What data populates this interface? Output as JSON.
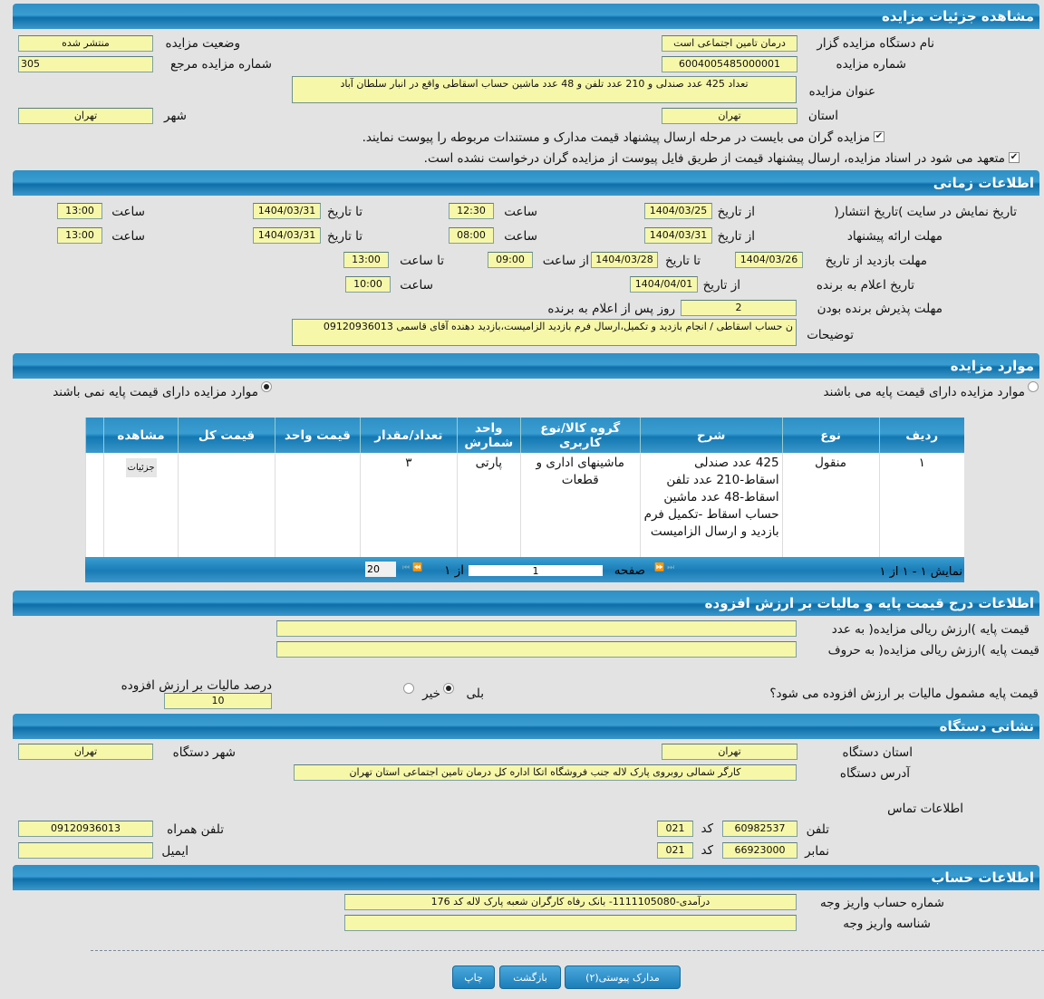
{
  "title": "مشاهده جزئیات مزایده",
  "details": {
    "org_label": "نام دستگاه مزایده گزار",
    "org_value": "درمان تامین اجتماعی است",
    "status_label": "وضعیت مزایده",
    "status_value": "منتشر شده",
    "number_label": "شماره مزایده",
    "number_value": "6004005485000001",
    "ref_label": "شماره مزایده مرجع",
    "ref_value": "305",
    "subject_label": "عنوان مزایده",
    "subject_value": "تعداد 425 عدد صندلی و 210 عدد تلفن و 48 عدد ماشین حساب اسقاطی واقع در انبار سلطان آباد",
    "province_label": "استان",
    "province_value": "تهران",
    "city_label": "شهر",
    "city_value": "تهران",
    "check1": "مزایده گران می بایست در مرحله ارسال پیشنهاد قیمت مدارک و مستندات مربوطه را پیوست نمایند.",
    "check2": "متعهد می شود در اسناد مزایده، ارسال پیشنهاد قیمت از طریق فایل پیوست از مزایده گران درخواست نشده است."
  },
  "timing": {
    "title": "اطلاعات زمانی",
    "publish_label": "تاریخ نمایش در سایت )تاریخ انتشار(",
    "offer_label": "مهلت ارائه پیشنهاد",
    "visit_label": "مهلت بازدید   از تاریخ",
    "announce_label": "تاریخ اعلام به برنده",
    "accept_label": "مهلت پذیرش برنده بودن",
    "from_date": "از تاریخ",
    "to_date": "تا تاریخ",
    "time": "ساعت",
    "from_time": "از ساعت",
    "to_time": "تا ساعت",
    "publish": {
      "from": "1404/03/25",
      "from_time": "12:30",
      "to": "1404/03/31",
      "to_time": "13:00"
    },
    "offer": {
      "from": "1404/03/31",
      "from_time": "08:00",
      "to": "1404/03/31",
      "to_time": "13:00"
    },
    "visit": {
      "from": "1404/03/26",
      "to": "1404/03/28",
      "from_time": "09:00",
      "to_time": "13:00"
    },
    "announce": {
      "from": "1404/04/01",
      "time": "10:00"
    },
    "accept_days": "2",
    "accept_suffix": "روز پس از اعلام به برنده",
    "notes_label": "توضیحات",
    "notes_value": "ن حساب اسقاطی  /  انجام بازدید و تکمیل،ارسال فرم بازدید الزامیست،بازدید دهنده آقای قاسمی 09120936013"
  },
  "items": {
    "title": "موارد مزایده",
    "radio_with_price": "موارد مزایده دارای قیمت پایه می باشند",
    "radio_without_price": "موارد مزایده دارای قیمت پایه نمی باشند",
    "columns": [
      "ردیف",
      "نوع",
      "شرح",
      "گروه کالا/نوع کاربری",
      "واحد شمارش",
      "تعداد/مقدار",
      "قیمت واحد",
      "قیمت کل",
      "مشاهده"
    ],
    "rows": [
      {
        "row": "۱",
        "type": "منقول",
        "desc": "425 عدد صندلی اسقاط-210 عدد تلفن اسقاط-48 عدد ماشین حساب اسقاط   -تکمیل فرم بازدید و ارسال الزامیست",
        "group": "ماشینهای اداری و قطعات",
        "unit": "پارتی",
        "qty": "۳",
        "unit_price": "",
        "total": "",
        "view": "جزئیات"
      }
    ],
    "pager": {
      "summary": "نمایش ۱ - ۱ از ۱",
      "page_label": "صفحه",
      "page": "1",
      "of": "از ۱",
      "page_size": "20"
    }
  },
  "price": {
    "title": "اطلاعات درج قیمت پایه و مالیات بر ارزش افزوده",
    "number_label": "قیمت پایه )ارزش ریالی مزایده( به عدد",
    "number_value": "",
    "words_label": "قیمت پایه )ارزش ریالی مزایده( به حروف",
    "words_value": "",
    "vat_question": "قیمت پایه مشمول مالیات بر ارزش افزوده می شود؟",
    "yes": "بلی",
    "no": "خیر",
    "vat_percent_label": "درصد مالیات بر ارزش افزوده",
    "vat_percent_value": "10"
  },
  "address": {
    "title": "نشانی دستگاه",
    "province_label": "استان دستگاه",
    "province_value": "تهران",
    "city_label": "شهر دستگاه",
    "city_value": "تهران",
    "address_label": "آدرس دستگاه",
    "address_value": "کارگر شمالی روبروی پارک لاله جنب فروشگاه اتکا اداره کل درمان تامین اجتماعی استان تهران",
    "contact_title": "اطلاعات تماس",
    "phone_label": "تلفن",
    "phone_value": "60982537",
    "code_label": "کد",
    "phone_code": "021",
    "fax_label": "نمابر",
    "fax_value": "66923000",
    "fax_code": "021",
    "mobile_label": "تلفن همراه",
    "mobile_value": "09120936013",
    "email_label": "ایمیل",
    "email_value": ""
  },
  "account": {
    "title": "اطلاعات حساب",
    "account_label": "شماره حساب واریز وجه",
    "account_value": "درآمدی-1111105080- بانک رفاه کارگران شعبه پارک لاله کد 176",
    "id_label": "شناسه واریز وجه",
    "id_value": ""
  },
  "buttons": {
    "attachments": "مدارک پیوستی(۲)",
    "back": "بازگشت",
    "print": "چاپ"
  }
}
